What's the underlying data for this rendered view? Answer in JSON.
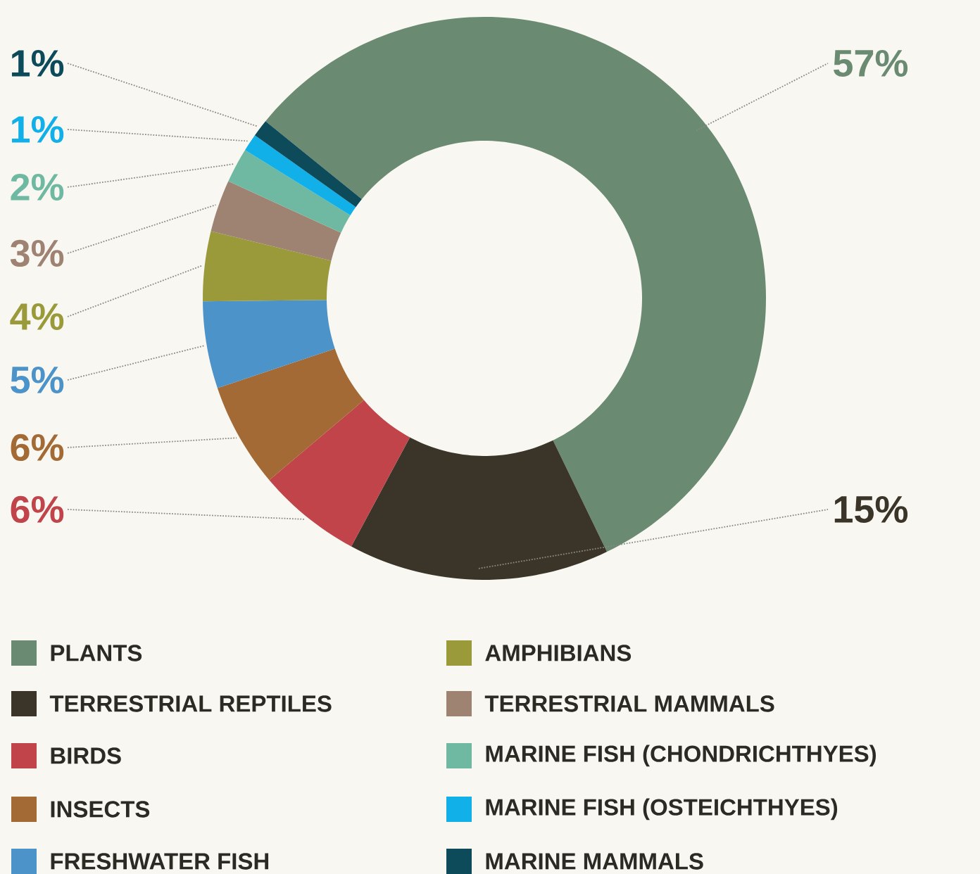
{
  "chart_data": {
    "type": "donut",
    "categories": [
      "PLANTS",
      "TERRESTRIAL REPTILES",
      "BIRDS",
      "INSECTS",
      "FRESHWATER FISH",
      "AMPHIBIANS",
      "TERRESTRIAL MAMMALS",
      "MARINE FISH (CHONDRICHTHYES)",
      "MARINE FISH (OSTEICHTHYES)",
      "MARINE MAMMALS"
    ],
    "values": [
      57,
      15,
      6,
      6,
      5,
      4,
      3,
      2,
      1,
      1
    ],
    "colors": [
      "#6b8a72",
      "#3a3528",
      "#c0444a",
      "#a36a35",
      "#4b93c9",
      "#9a9a3a",
      "#9f8372",
      "#6fb8a2",
      "#12b0e8",
      "#0d4a5a"
    ],
    "value_labels": [
      "57%",
      "15%",
      "6%",
      "6%",
      "5%",
      "4%",
      "3%",
      "2%",
      "1%",
      "1%"
    ],
    "legend": "bottom"
  }
}
